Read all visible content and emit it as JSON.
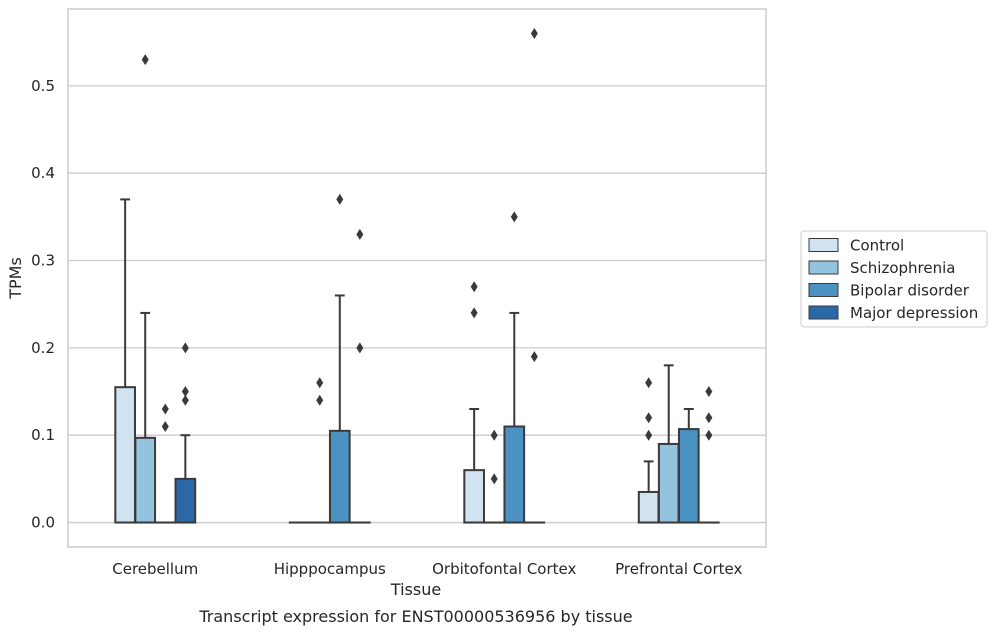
{
  "chart_data": {
    "type": "box",
    "title": "",
    "caption": "Transcript expression for ENST00000536956 by tissue",
    "xlabel": "Tissue",
    "ylabel": "TPMs",
    "ylim": [
      -0.028,
      0.588
    ],
    "yticks": [
      "0.0",
      "0.1",
      "0.2",
      "0.3",
      "0.4",
      "0.5"
    ],
    "grid": "horizontal",
    "legend_position": "right",
    "categories": [
      "Cerebellum",
      "Hipppocampus",
      "Orbitofontal Cortex",
      "Prefrontal Cortex"
    ],
    "series": [
      {
        "name": "Control",
        "color": "#d1e2f0",
        "boxes": [
          {
            "q1": 0.0,
            "median": 0.0,
            "q3": 0.155,
            "whisker_low": 0.0,
            "whisker_high": 0.37,
            "outliers": []
          },
          {
            "q1": 0.0,
            "median": 0.0,
            "q3": 0.0,
            "whisker_low": 0.0,
            "whisker_high": 0.0,
            "outliers": []
          },
          {
            "q1": 0.0,
            "median": 0.0,
            "q3": 0.06,
            "whisker_low": 0.0,
            "whisker_high": 0.13,
            "outliers": [
              0.24,
              0.27
            ]
          },
          {
            "q1": 0.0,
            "median": 0.0,
            "q3": 0.035,
            "whisker_low": 0.0,
            "whisker_high": 0.07,
            "outliers": [
              0.1,
              0.12,
              0.16
            ]
          }
        ]
      },
      {
        "name": "Schizophrenia",
        "color": "#93c3df",
        "boxes": [
          {
            "q1": 0.0,
            "median": 0.0,
            "q3": 0.097,
            "whisker_low": 0.0,
            "whisker_high": 0.24,
            "outliers": [
              0.53
            ]
          },
          {
            "q1": 0.0,
            "median": 0.0,
            "q3": 0.0,
            "whisker_low": 0.0,
            "whisker_high": 0.0,
            "outliers": [
              0.14,
              0.16
            ]
          },
          {
            "q1": 0.0,
            "median": 0.0,
            "q3": 0.0,
            "whisker_low": 0.0,
            "whisker_high": 0.0,
            "outliers": [
              0.05,
              0.1
            ]
          },
          {
            "q1": 0.0,
            "median": 0.0,
            "q3": 0.09,
            "whisker_low": 0.0,
            "whisker_high": 0.18,
            "outliers": []
          }
        ]
      },
      {
        "name": "Bipolar disorder",
        "color": "#4b91c1",
        "boxes": [
          {
            "q1": 0.0,
            "median": 0.0,
            "q3": 0.0,
            "whisker_low": 0.0,
            "whisker_high": 0.0,
            "outliers": [
              0.11,
              0.13
            ]
          },
          {
            "q1": 0.0,
            "median": 0.0,
            "q3": 0.105,
            "whisker_low": 0.0,
            "whisker_high": 0.26,
            "outliers": [
              0.37
            ]
          },
          {
            "q1": 0.0,
            "median": 0.0,
            "q3": 0.11,
            "whisker_low": 0.0,
            "whisker_high": 0.24,
            "outliers": [
              0.35
            ]
          },
          {
            "q1": 0.0,
            "median": 0.0,
            "q3": 0.107,
            "whisker_low": 0.0,
            "whisker_high": 0.13,
            "outliers": []
          }
        ]
      },
      {
        "name": "Major depression",
        "color": "#2a68a8",
        "boxes": [
          {
            "q1": 0.0,
            "median": 0.0,
            "q3": 0.05,
            "whisker_low": 0.0,
            "whisker_high": 0.1,
            "outliers": [
              0.14,
              0.15,
              0.2
            ]
          },
          {
            "q1": 0.0,
            "median": 0.0,
            "q3": 0.0,
            "whisker_low": 0.0,
            "whisker_high": 0.0,
            "outliers": [
              0.2,
              0.33
            ]
          },
          {
            "q1": 0.0,
            "median": 0.0,
            "q3": 0.0,
            "whisker_low": 0.0,
            "whisker_high": 0.0,
            "outliers": [
              0.19,
              0.56
            ]
          },
          {
            "q1": 0.0,
            "median": 0.0,
            "q3": 0.0,
            "whisker_low": 0.0,
            "whisker_high": 0.0,
            "outliers": [
              0.1,
              0.12,
              0.15
            ]
          }
        ]
      }
    ]
  }
}
